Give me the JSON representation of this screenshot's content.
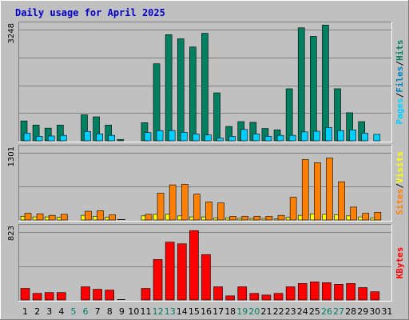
{
  "title": "Daily usage for April 2025",
  "chart_data": [
    {
      "type": "bar",
      "panel": "hits-files-pages",
      "ymax_label": "3248",
      "ylim": [
        0,
        3248
      ],
      "series": [
        {
          "name": "Hits",
          "color": "#008060",
          "values": [
            580,
            460,
            370,
            460,
            0,
            760,
            700,
            460,
            40,
            0,
            530,
            2250,
            3100,
            2980,
            2740,
            3140,
            1400,
            420,
            560,
            540,
            360,
            320,
            1520,
            3300,
            3050,
            3380,
            1520,
            820,
            560,
            0,
            0
          ]
        },
        {
          "name": "Files",
          "color": "#0080c0",
          "values": [
            0,
            0,
            0,
            0,
            0,
            0,
            0,
            0,
            0,
            0,
            0,
            0,
            0,
            0,
            0,
            0,
            0,
            0,
            0,
            0,
            0,
            0,
            0,
            0,
            0,
            0,
            0,
            0,
            0,
            0,
            0
          ]
        },
        {
          "name": "Pages",
          "color": "#00d0ff",
          "values": [
            220,
            130,
            140,
            160,
            0,
            270,
            200,
            160,
            0,
            0,
            240,
            300,
            300,
            250,
            200,
            170,
            80,
            130,
            330,
            200,
            130,
            160,
            160,
            260,
            280,
            390,
            300,
            320,
            220,
            190,
            0
          ]
        }
      ],
      "legend_labels": [
        "Pages",
        "/",
        "Files",
        "/",
        "Hits"
      ],
      "legend_colors": [
        "#00d0ff",
        "#000000",
        "#0080c0",
        "#000000",
        "#008060"
      ]
    },
    {
      "type": "bar",
      "panel": "sites-visits",
      "ymax_label": "1301",
      "ylim": [
        0,
        1301
      ],
      "series": [
        {
          "name": "Visits",
          "color": "#ffff00",
          "values": [
            70,
            60,
            60,
            50,
            0,
            90,
            70,
            50,
            0,
            0,
            80,
            110,
            110,
            80,
            60,
            60,
            40,
            40,
            30,
            30,
            30,
            20,
            50,
            90,
            120,
            110,
            100,
            80,
            60,
            40,
            0
          ]
        },
        {
          "name": "Sites",
          "color": "#ff8000",
          "values": [
            130,
            120,
            90,
            110,
            0,
            170,
            180,
            100,
            0,
            0,
            110,
            520,
            680,
            690,
            500,
            350,
            330,
            70,
            70,
            70,
            70,
            90,
            440,
            1170,
            1110,
            1200,
            740,
            250,
            130,
            150,
            0
          ]
        }
      ],
      "legend_labels": [
        "Sites",
        "/",
        "Visits"
      ],
      "legend_colors": [
        "#ff8000",
        "#000000",
        "#ffff00"
      ]
    },
    {
      "type": "bar",
      "panel": "kbytes",
      "ymax_label": "823",
      "ylim": [
        0,
        823
      ],
      "series": [
        {
          "name": "KBytes",
          "color": "#ff0000",
          "values": [
            140,
            80,
            90,
            90,
            0,
            160,
            130,
            120,
            0,
            0,
            140,
            490,
            700,
            680,
            840,
            550,
            160,
            50,
            160,
            80,
            60,
            80,
            160,
            200,
            220,
            210,
            190,
            200,
            150,
            100,
            0
          ]
        }
      ],
      "legend_labels": [
        "KBytes"
      ],
      "legend_colors": [
        "#ff0000"
      ]
    }
  ],
  "x_labels": [
    "1",
    "2",
    "3",
    "4",
    "5",
    "6",
    "7",
    "8",
    "9",
    "10",
    "11",
    "12",
    "13",
    "14",
    "15",
    "16",
    "17",
    "18",
    "19",
    "20",
    "21",
    "22",
    "23",
    "24",
    "25",
    "26",
    "27",
    "28",
    "29",
    "30",
    "31"
  ],
  "x_label_colors": [
    "#000000",
    "#000000",
    "#000000",
    "#000000",
    "#008060",
    "#008060",
    "#000000",
    "#000000",
    "#000000",
    "#000000",
    "#000000",
    "#008060",
    "#008060",
    "#000000",
    "#000000",
    "#000000",
    "#000000",
    "#000000",
    "#008060",
    "#008060",
    "#000000",
    "#000000",
    "#000000",
    "#000000",
    "#000000",
    "#008060",
    "#008060",
    "#000000",
    "#000000",
    "#000000",
    "#000000"
  ]
}
